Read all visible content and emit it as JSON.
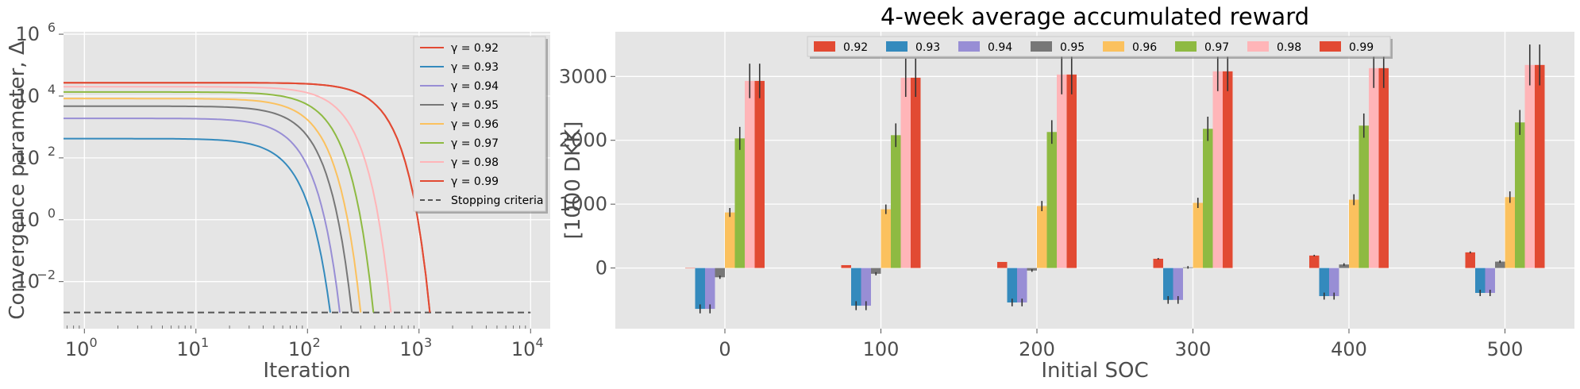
{
  "chart_data": [
    {
      "type": "line",
      "title": "",
      "xlabel": "Iteration",
      "ylabel": "Convergence parameter, Δ",
      "xscale": "log",
      "yscale": "log",
      "xlim": [
        0.65,
        15000
      ],
      "ylim": [
        0.0003,
        1200000
      ],
      "x_ticks": [
        {
          "value": 1,
          "label": "10"
        },
        {
          "value": 10,
          "label": "10"
        },
        {
          "value": 100,
          "label": "10"
        },
        {
          "value": 1000,
          "label": "10"
        },
        {
          "value": 10000,
          "label": "10"
        }
      ],
      "x_tick_exps": [
        "0",
        "1",
        "2",
        "3",
        "4"
      ],
      "y_ticks": [
        {
          "value": 0.01,
          "label": "10"
        },
        {
          "value": 1,
          "label": "10"
        },
        {
          "value": 100,
          "label": "10"
        },
        {
          "value": 10000,
          "label": "10"
        },
        {
          "value": 1000000,
          "label": "10"
        }
      ],
      "y_tick_exps": [
        "−2",
        "0",
        "2",
        "4",
        "6"
      ],
      "grid": true,
      "legend_position": "top-right",
      "series": [
        {
          "name": "γ = 0.92",
          "color": "#E24A33",
          "start": 27000,
          "end_x": 1250
        },
        {
          "name": "γ = 0.93",
          "color": "#348ABD",
          "start": 420,
          "end_x": 160
        },
        {
          "name": "γ = 0.94",
          "color": "#988ED5",
          "start": 1900,
          "end_x": 195
        },
        {
          "name": "γ = 0.95",
          "color": "#777777",
          "start": 4700,
          "end_x": 250
        },
        {
          "name": "γ = 0.96",
          "color": "#FBC15E",
          "start": 8300,
          "end_x": 300
        },
        {
          "name": "γ = 0.97",
          "color": "#8EBA42",
          "start": 13500,
          "end_x": 390
        },
        {
          "name": "γ = 0.98",
          "color": "#FFB5B8",
          "start": 20000,
          "end_x": 560
        },
        {
          "name": "γ = 0.99",
          "color": "#E24A33",
          "start": 27000,
          "end_x": 1250
        }
      ],
      "stopping_criteria": {
        "name": "Stopping criteria",
        "value": 0.001,
        "color": "#555555"
      }
    },
    {
      "type": "bar",
      "title": "4-week average accumulated reward",
      "xlabel": "Initial SOC",
      "ylabel": "[1000 DKK]",
      "categories": [
        "0",
        "100",
        "200",
        "300",
        "400",
        "500"
      ],
      "ylim": [
        -950,
        3700
      ],
      "y_ticks": [
        "0",
        "1000",
        "2000",
        "3000"
      ],
      "y_tick_values": [
        0,
        1000,
        2000,
        3000
      ],
      "grid": true,
      "legend_position": "top-center",
      "series": [
        {
          "name": "0.92",
          "color": "#E24A33",
          "values": [
            0,
            45,
            95,
            145,
            195,
            245
          ],
          "errors": [
            0,
            0,
            0,
            12,
            12,
            15
          ]
        },
        {
          "name": "0.93",
          "color": "#348ABD",
          "values": [
            -640,
            -590,
            -540,
            -500,
            -440,
            -390
          ],
          "errors": [
            70,
            70,
            60,
            60,
            55,
            50
          ]
        },
        {
          "name": "0.94",
          "color": "#988ED5",
          "values": [
            -640,
            -590,
            -540,
            -500,
            -440,
            -390
          ],
          "errors": [
            70,
            70,
            60,
            60,
            55,
            50
          ]
        },
        {
          "name": "0.95",
          "color": "#777777",
          "values": [
            -145,
            -90,
            -40,
            10,
            55,
            100
          ],
          "errors": [
            25,
            25,
            20,
            20,
            20,
            20
          ]
        },
        {
          "name": "0.96",
          "color": "#FBC15E",
          "values": [
            870,
            920,
            970,
            1020,
            1070,
            1110
          ],
          "errors": [
            70,
            75,
            80,
            80,
            85,
            90
          ]
        },
        {
          "name": "0.97",
          "color": "#8EBA42",
          "values": [
            2030,
            2080,
            2130,
            2180,
            2230,
            2280
          ],
          "errors": [
            180,
            185,
            185,
            190,
            190,
            195
          ]
        },
        {
          "name": "0.98",
          "color": "#FFB5B8",
          "values": [
            2930,
            2980,
            3030,
            3080,
            3130,
            3180
          ],
          "errors": [
            270,
            300,
            310,
            310,
            310,
            320
          ]
        },
        {
          "name": "0.99",
          "color": "#E24A33",
          "values": [
            2930,
            2980,
            3030,
            3080,
            3130,
            3180
          ],
          "errors": [
            270,
            300,
            310,
            310,
            310,
            320
          ]
        }
      ]
    }
  ]
}
